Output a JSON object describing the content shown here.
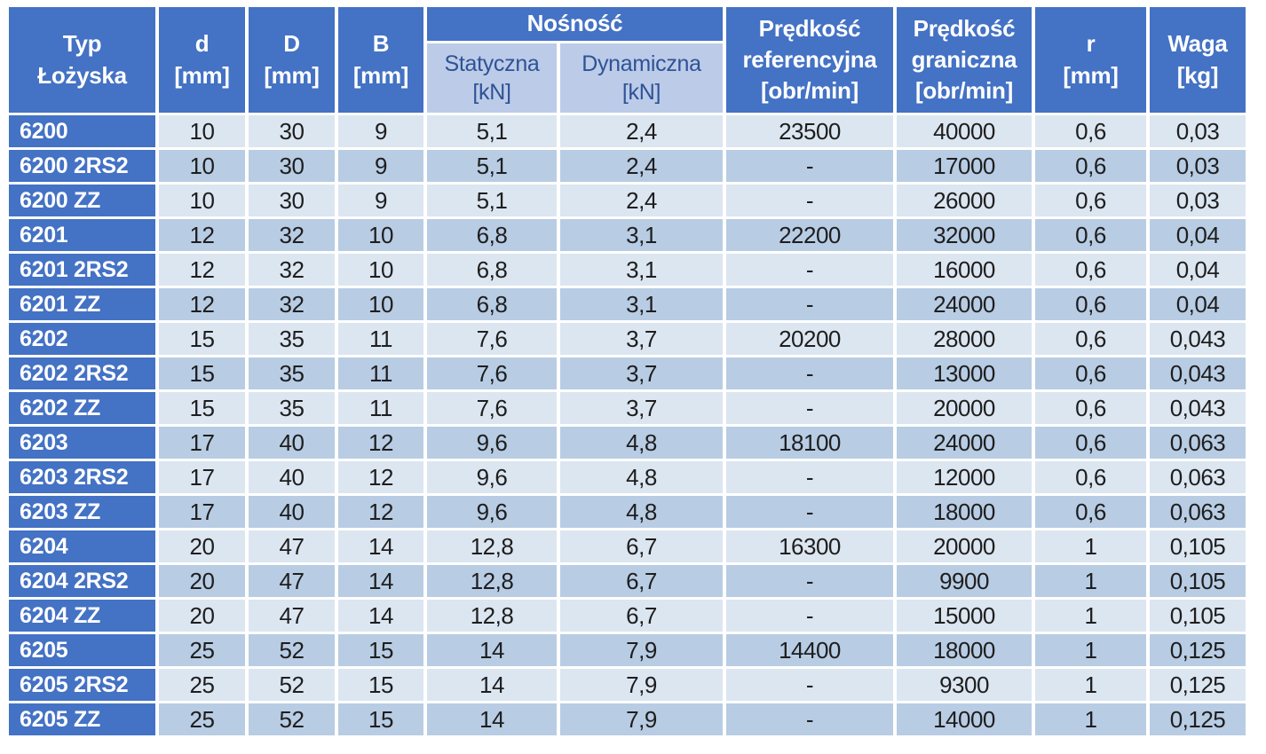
{
  "colors": {
    "header_bg": "#4472C4",
    "row_label_bg": "#4472C4",
    "subheader_bg": "#BCCBE8",
    "subheader_text": "#2E5395",
    "row_light": "#DCE6F1",
    "row_medium": "#B8CCE4",
    "header_text": "#FFFFFF",
    "cell_text": "#1E1E1E"
  },
  "header": {
    "typ": "Typ\nŁożyska",
    "d": "d\n[mm]",
    "D": "D\n[mm]",
    "B": "B\n[mm]",
    "nosnosc": "Nośność",
    "statyczna": "Statyczna\n[kN]",
    "dynamiczna": "Dynamiczna\n[kN]",
    "predkosc_referencyjna": "Prędkość\nreferencyjna\n[obr/min]",
    "predkosc_graniczna": "Prędkość\ngraniczna\n[obr/min]",
    "r": "r\n[mm]",
    "waga": "Waga\n[kg]"
  },
  "chart_data": {
    "type": "table",
    "title": "",
    "columns": [
      "Typ Łożyska",
      "d [mm]",
      "D [mm]",
      "B [mm]",
      "Nośność Statyczna [kN]",
      "Nośność Dynamiczna [kN]",
      "Prędkość referencyjna [obr/min]",
      "Prędkość graniczna [obr/min]",
      "r [mm]",
      "Waga [kg]"
    ],
    "rows": [
      [
        "6200",
        "10",
        "30",
        "9",
        "5,1",
        "2,4",
        "23500",
        "40000",
        "0,6",
        "0,03"
      ],
      [
        "6200 2RS2",
        "10",
        "30",
        "9",
        "5,1",
        "2,4",
        "-",
        "17000",
        "0,6",
        "0,03"
      ],
      [
        "6200 ZZ",
        "10",
        "30",
        "9",
        "5,1",
        "2,4",
        "-",
        "26000",
        "0,6",
        "0,03"
      ],
      [
        "6201",
        "12",
        "32",
        "10",
        "6,8",
        "3,1",
        "22200",
        "32000",
        "0,6",
        "0,04"
      ],
      [
        "6201 2RS2",
        "12",
        "32",
        "10",
        "6,8",
        "3,1",
        "-",
        "16000",
        "0,6",
        "0,04"
      ],
      [
        "6201 ZZ",
        "12",
        "32",
        "10",
        "6,8",
        "3,1",
        "-",
        "24000",
        "0,6",
        "0,04"
      ],
      [
        "6202",
        "15",
        "35",
        "11",
        "7,6",
        "3,7",
        "20200",
        "28000",
        "0,6",
        "0,043"
      ],
      [
        "6202 2RS2",
        "15",
        "35",
        "11",
        "7,6",
        "3,7",
        "-",
        "13000",
        "0,6",
        "0,043"
      ],
      [
        "6202 ZZ",
        "15",
        "35",
        "11",
        "7,6",
        "3,7",
        "-",
        "20000",
        "0,6",
        "0,043"
      ],
      [
        "6203",
        "17",
        "40",
        "12",
        "9,6",
        "4,8",
        "18100",
        "24000",
        "0,6",
        "0,063"
      ],
      [
        "6203 2RS2",
        "17",
        "40",
        "12",
        "9,6",
        "4,8",
        "-",
        "12000",
        "0,6",
        "0,063"
      ],
      [
        "6203 ZZ",
        "17",
        "40",
        "12",
        "9,6",
        "4,8",
        "-",
        "18000",
        "0,6",
        "0,063"
      ],
      [
        "6204",
        "20",
        "47",
        "14",
        "12,8",
        "6,7",
        "16300",
        "20000",
        "1",
        "0,105"
      ],
      [
        "6204 2RS2",
        "20",
        "47",
        "14",
        "12,8",
        "6,7",
        "-",
        "9900",
        "1",
        "0,105"
      ],
      [
        "6204 ZZ",
        "20",
        "47",
        "14",
        "12,8",
        "6,7",
        "-",
        "15000",
        "1",
        "0,105"
      ],
      [
        "6205",
        "25",
        "52",
        "15",
        "14",
        "7,9",
        "14400",
        "18000",
        "1",
        "0,125"
      ],
      [
        "6205 2RS2",
        "25",
        "52",
        "15",
        "14",
        "7,9",
        "-",
        "9300",
        "1",
        "0,125"
      ],
      [
        "6205 ZZ",
        "25",
        "52",
        "15",
        "14",
        "7,9",
        "-",
        "14000",
        "1",
        "0,125"
      ]
    ]
  }
}
